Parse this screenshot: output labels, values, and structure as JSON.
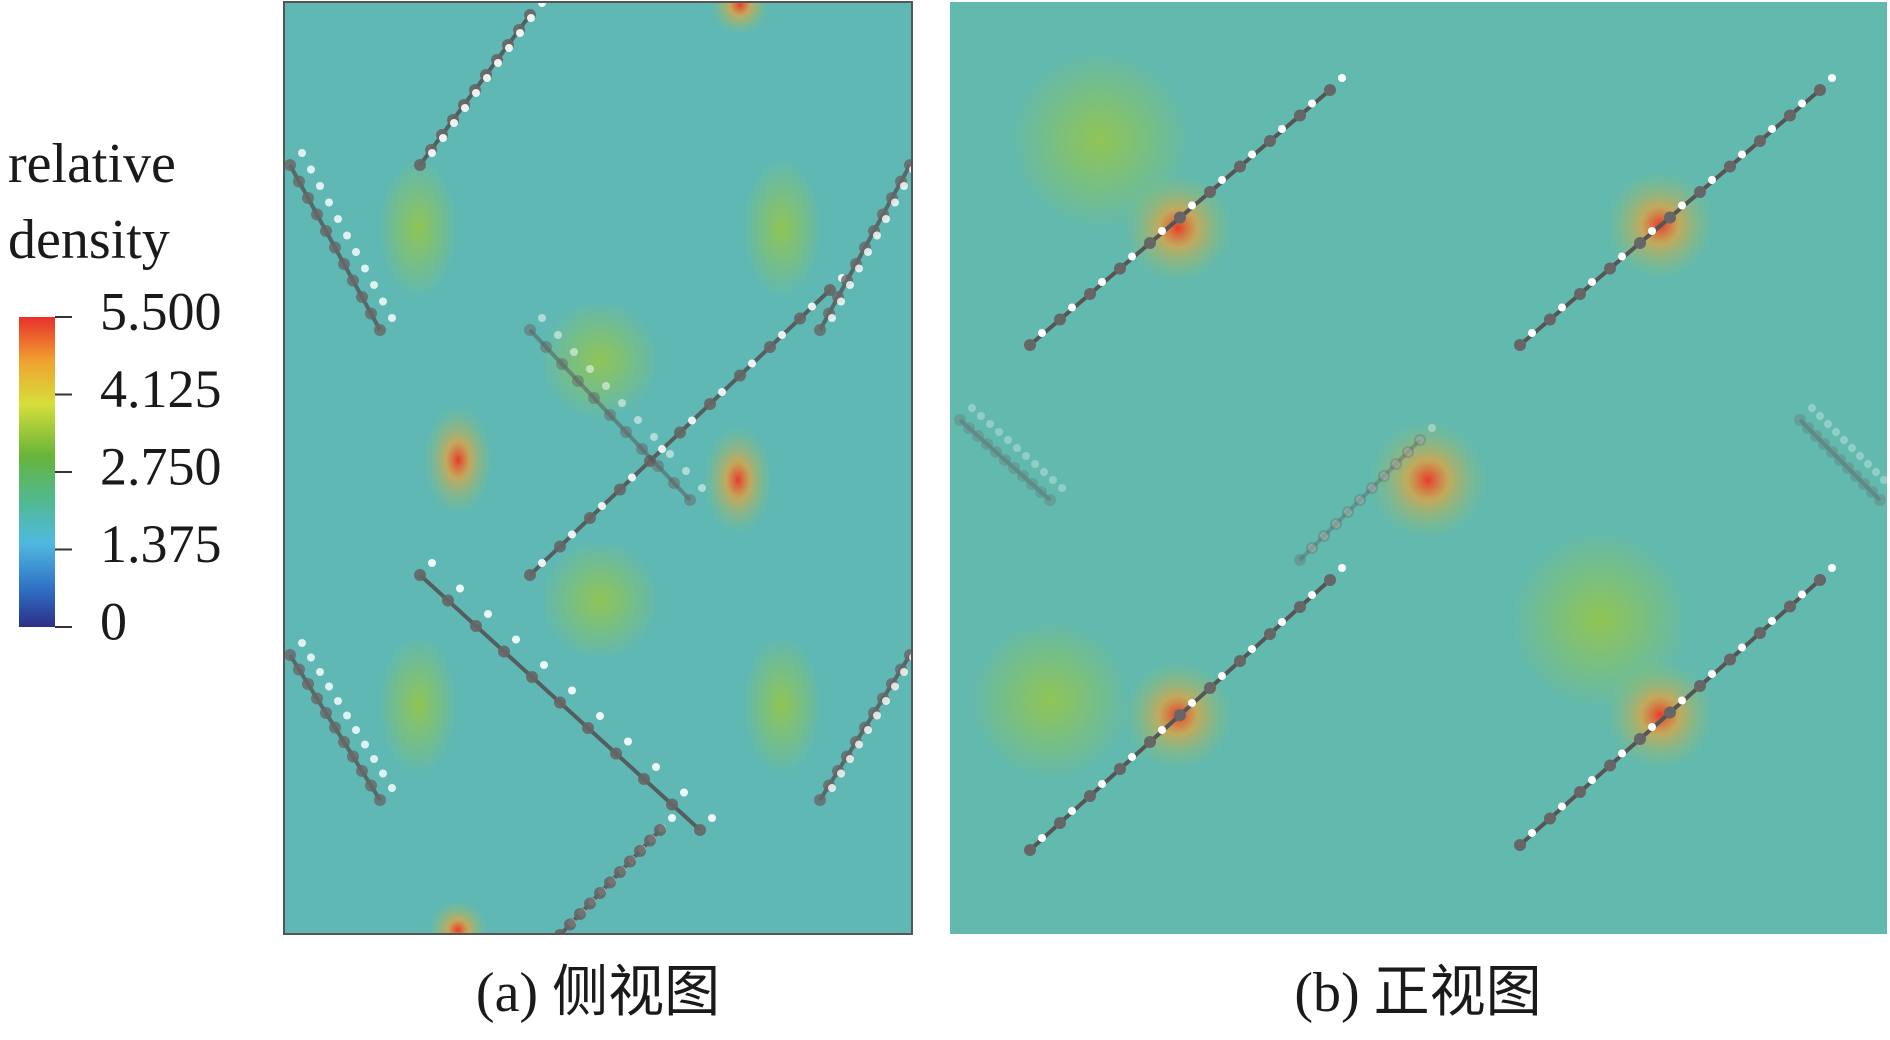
{
  "colorbar": {
    "title_lines": [
      "relative",
      "density"
    ],
    "range": [
      0,
      5.5
    ],
    "ticks": [
      {
        "value": 5.5,
        "label": "5.500"
      },
      {
        "value": 4.125,
        "label": "4.125"
      },
      {
        "value": 2.75,
        "label": "2.750"
      },
      {
        "value": 1.375,
        "label": "1.375"
      },
      0
    ]
  },
  "panels": [
    {
      "caption": "(a) 侧视图"
    },
    {
      "caption": "(b) 正视图"
    }
  ]
}
